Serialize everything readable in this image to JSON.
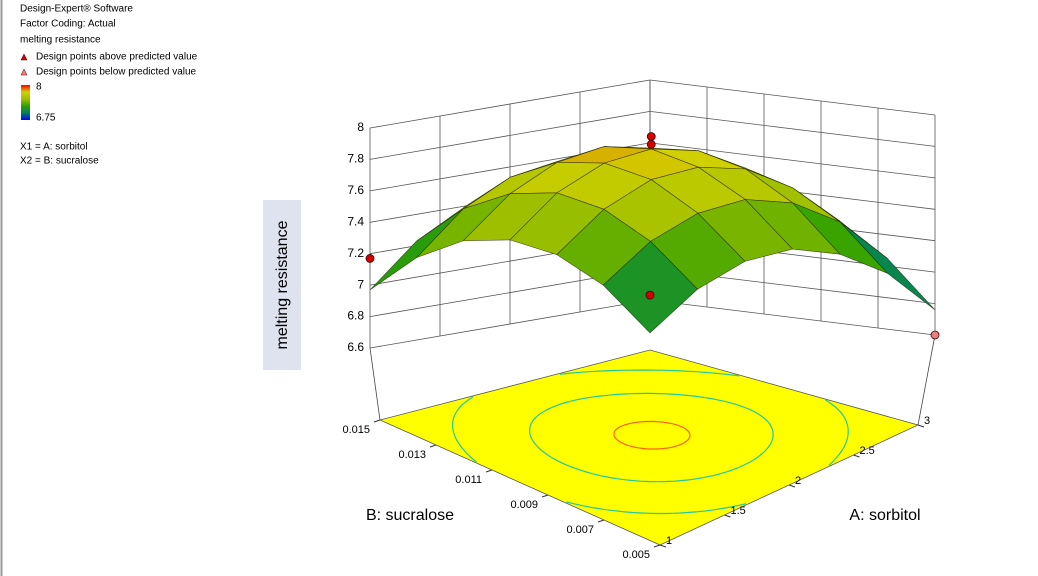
{
  "chart_data": {
    "type": "surface3d",
    "annotations": [
      "Design-Expert® Software",
      "Factor Coding: Actual"
    ],
    "legend": {
      "title": "melting resistance",
      "items": [
        {
          "label": "Design points above predicted value",
          "color": "#d40000"
        },
        {
          "label": "Design points below predicted value",
          "color": "#e88080"
        }
      ]
    },
    "colorbar": {
      "max": 8,
      "min": 6.75,
      "max_color": "#e00000",
      "min_color": "#2020e0"
    },
    "colormap": [
      "#0000ff",
      "#008060",
      "#30a000",
      "#a0c000",
      "#d0d000",
      "#ff0000"
    ],
    "factors": [
      "X1 = A: sorbitol",
      "X2 = B: sucralose"
    ],
    "xlabel": "A: sorbitol",
    "ylabel": "B: sucralose",
    "zlabel": "melting resistance",
    "x": [
      1,
      1.333,
      1.667,
      2,
      2.333,
      2.667,
      3
    ],
    "y": [
      0.005,
      0.00667,
      0.00833,
      0.01,
      0.01167,
      0.01333,
      0.015
    ],
    "z": [
      [
        6.9,
        7.13,
        7.26,
        7.29,
        7.21,
        7.04,
        6.76
      ],
      [
        7.17,
        7.4,
        7.53,
        7.57,
        7.5,
        7.33,
        7.05
      ],
      [
        7.33,
        7.57,
        7.71,
        7.74,
        7.68,
        7.51,
        7.25
      ],
      [
        7.39,
        7.64,
        7.78,
        7.82,
        7.76,
        7.6,
        7.34
      ],
      [
        7.35,
        7.6,
        7.75,
        7.8,
        7.74,
        7.58,
        7.33
      ],
      [
        7.21,
        7.47,
        7.62,
        7.67,
        7.62,
        7.47,
        7.21
      ],
      [
        6.97,
        7.23,
        7.39,
        7.44,
        7.4,
        7.25,
        7.0
      ]
    ],
    "xlim": [
      1,
      3
    ],
    "xticks": [
      1,
      1.5,
      2,
      2.5,
      3
    ],
    "ylim": [
      0.005,
      0.015
    ],
    "yticks": [
      0.005,
      0.007,
      0.009,
      0.011,
      0.013,
      0.015
    ],
    "zlim": [
      6.6,
      8
    ],
    "zticks": [
      6.6,
      6.8,
      7,
      7.2,
      7.4,
      7.6,
      7.8,
      8
    ],
    "design_points": {
      "x": [
        1,
        2,
        2,
        1,
        3
      ],
      "y": [
        0.015,
        0.01,
        0.01,
        0.005,
        0.005
      ],
      "z": [
        7.17,
        7.9,
        7.85,
        7.14,
        6.6
      ],
      "position": [
        "above",
        "above",
        "above",
        "above",
        "below"
      ]
    },
    "grid": true
  }
}
